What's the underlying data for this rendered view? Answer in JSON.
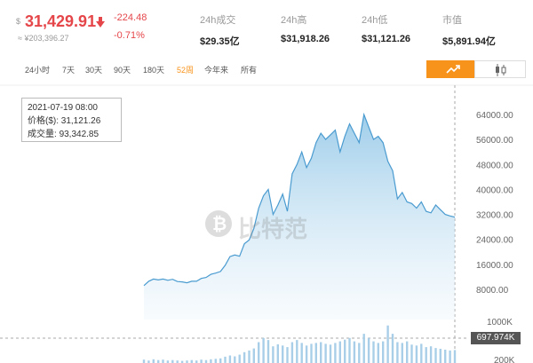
{
  "header": {
    "currency_symbol": "$",
    "price": "31,429.91",
    "cny_price": "≈ ¥203,396.27",
    "change": "-224.48",
    "change_pct": "-0.71%",
    "stats": [
      {
        "label": "24h成交",
        "value": "$29.35亿"
      },
      {
        "label": "24h高",
        "value": "$31,918.26"
      },
      {
        "label": "24h低",
        "value": "$31,121.26"
      },
      {
        "label": "市值",
        "value": "$5,891.94亿"
      }
    ],
    "down_color": "#e5464a"
  },
  "toolbar": {
    "ranges": [
      "24小时",
      "7天",
      "30天",
      "90天",
      "180天",
      "52周",
      "今年来",
      "所有"
    ],
    "active_range": "52周",
    "chart_types": [
      "line-chart-icon",
      "candlestick-icon"
    ],
    "active_type": "line-chart-icon",
    "accent_color": "#f7931a"
  },
  "tooltip": {
    "date": "2021-07-19 08:00",
    "price_label": "价格($):",
    "price_value": "31,121.26",
    "volume_label": "成交量:",
    "volume_value": "93,342.85"
  },
  "crosshair_label": "697.974K",
  "watermark": {
    "text": "比特范",
    "icon": "bitcoin-logo-icon"
  },
  "chart_data": {
    "type": "line",
    "yticks": [
      "64000.00",
      "56000.00",
      "48000.00",
      "40000.00",
      "32000.00",
      "24000.00",
      "16000.00",
      "8000.00"
    ],
    "ylim": [
      0,
      68000
    ],
    "volume_ticks": [
      "1000K",
      "200K"
    ],
    "series": [
      {
        "values": [
          9200,
          10600,
          11300,
          11000,
          11300,
          10900,
          11200,
          10500,
          10400,
          10100,
          10600,
          10600,
          11500,
          11800,
          12800,
          13200,
          13700,
          15700,
          18500,
          19000,
          18600,
          22600,
          23800,
          27500,
          34000,
          38000,
          40000,
          32000,
          35000,
          38500,
          33000,
          45000,
          48000,
          52000,
          47000,
          50000,
          55000,
          58000,
          56000,
          57500,
          59000,
          52000,
          57000,
          61000,
          58000,
          55000,
          64000,
          60000,
          56000,
          57000,
          55000,
          49000,
          46000,
          37000,
          39000,
          36000,
          35500,
          34000,
          36000,
          33000,
          32500,
          35000,
          33500,
          32000,
          31500,
          31121
        ],
        "color": "#4a9bd0"
      }
    ],
    "volume_values": [
      80,
      60,
      90,
      70,
      80,
      60,
      70,
      60,
      50,
      60,
      70,
      60,
      80,
      70,
      90,
      100,
      110,
      150,
      180,
      160,
      200,
      260,
      300,
      350,
      500,
      600,
      550,
      400,
      450,
      420,
      380,
      500,
      550,
      480,
      420,
      460,
      480,
      500,
      460,
      440,
      480,
      520,
      560,
      600,
      520,
      480,
      700,
      600,
      520,
      480,
      520,
      900,
      700,
      500,
      480,
      520,
      440,
      420,
      460,
      380,
      400,
      360,
      340,
      320,
      300,
      310
    ],
    "grid": false,
    "legend": "none"
  }
}
